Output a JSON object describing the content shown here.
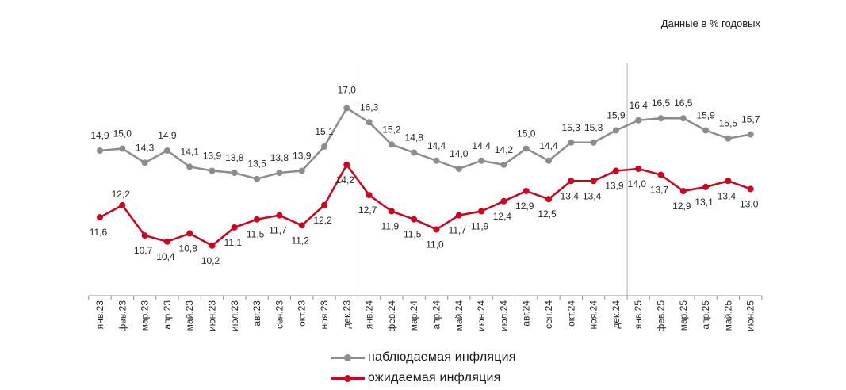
{
  "unit_note": "Данные в % годовых",
  "colors": {
    "observed": "#8c8c8c",
    "expected": "#d0021b",
    "axis": "#8c8c8c",
    "divider": "#b0b0b0",
    "label": "#262626"
  },
  "chart_data": {
    "type": "line",
    "categories": [
      "янв.23",
      "фев.23",
      "мар.23",
      "апр.23",
      "май.23",
      "июн.23",
      "июл.23",
      "авг.23",
      "сен.23",
      "окт.23",
      "ноя.23",
      "дек.23",
      "янв.24",
      "фев.24",
      "мар.24",
      "апр.24",
      "май.24",
      "июн.24",
      "июл.24",
      "авг.24",
      "сен.24",
      "окт.24",
      "ноя.24",
      "дек.24",
      "янв.25",
      "фев.25",
      "мар.25",
      "апр.25",
      "май.25",
      "июн.25"
    ],
    "series": [
      {
        "name": "наблюдаемая  инфляция",
        "color": "#8c8c8c",
        "values": [
          14.9,
          15.0,
          14.3,
          14.9,
          14.1,
          13.9,
          13.8,
          13.5,
          13.8,
          13.9,
          15.1,
          17.0,
          16.3,
          15.2,
          14.8,
          14.4,
          14.0,
          14.4,
          14.2,
          15.0,
          14.4,
          15.3,
          15.3,
          15.9,
          16.4,
          16.5,
          16.5,
          15.9,
          15.5,
          15.7
        ]
      },
      {
        "name": "ожидаемая  инфляция",
        "color": "#d0021b",
        "values": [
          11.6,
          12.2,
          10.7,
          10.4,
          10.8,
          10.2,
          11.1,
          11.5,
          11.7,
          11.2,
          12.2,
          14.2,
          12.7,
          11.9,
          11.5,
          11.0,
          11.7,
          11.9,
          12.4,
          12.9,
          12.5,
          13.4,
          13.4,
          13.9,
          14.0,
          13.7,
          12.9,
          13.1,
          13.4,
          13.0
        ]
      }
    ],
    "year_dividers_after": [
      "дек.23",
      "дек.24"
    ],
    "legend_position": "bottom",
    "grid": false
  },
  "legend": {
    "observed_label": "наблюдаемая  инфляция",
    "expected_label": "ожидаемая  инфляция"
  }
}
